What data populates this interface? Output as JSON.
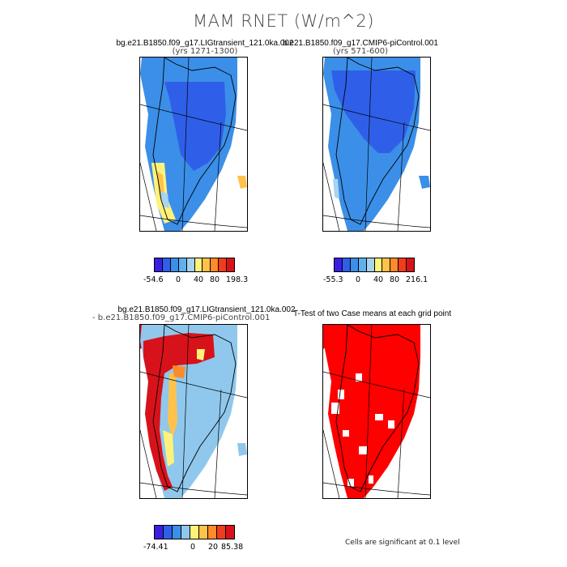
{
  "title": "MAM RNET (W/m^2)",
  "panels": {
    "top_left": {
      "title": "bg.e21.B1850.f09_g17.LIGtransient_121.0ka.002",
      "subtitle": "(yrs 1271-1300)",
      "colorbar_labels": [
        "-54.6",
        "0",
        "40",
        "80",
        "198.3"
      ]
    },
    "top_right": {
      "title": "b.e21.B1850.f09_g17.CMIP6-piControl.001",
      "subtitle": "(yrs 571-600)",
      "colorbar_labels": [
        "-55.3",
        "0",
        "40",
        "80",
        "216.1"
      ]
    },
    "bottom_left": {
      "title": "bg.e21.B1850.f09_g17.LIGtransient_121.0ka.002",
      "subtitle": "- b.e21.B1850.f09_g17.CMIP6-piControl.001",
      "colorbar_labels": [
        "-74.41",
        "0",
        "20",
        "85.38"
      ]
    },
    "bottom_right": {
      "title": "T-Test of two Case means at each grid point",
      "note": "Cells are significant at 0.1 level"
    }
  },
  "colors": {
    "scale": [
      "#3a1fe0",
      "#2f5fe8",
      "#3b8fe8",
      "#5fb0ec",
      "#a8d4ee",
      "#fff27a",
      "#ffc24a",
      "#ff8a28",
      "#f03c1e",
      "#d8121a"
    ],
    "diff_scale": [
      "#3a1fe0",
      "#2f5fe8",
      "#3b8fe8",
      "#8fc8ec",
      "#fff27a",
      "#ffc24a",
      "#ff8a28",
      "#f03c1e",
      "#d8121a"
    ],
    "significant": "#ff0000"
  }
}
